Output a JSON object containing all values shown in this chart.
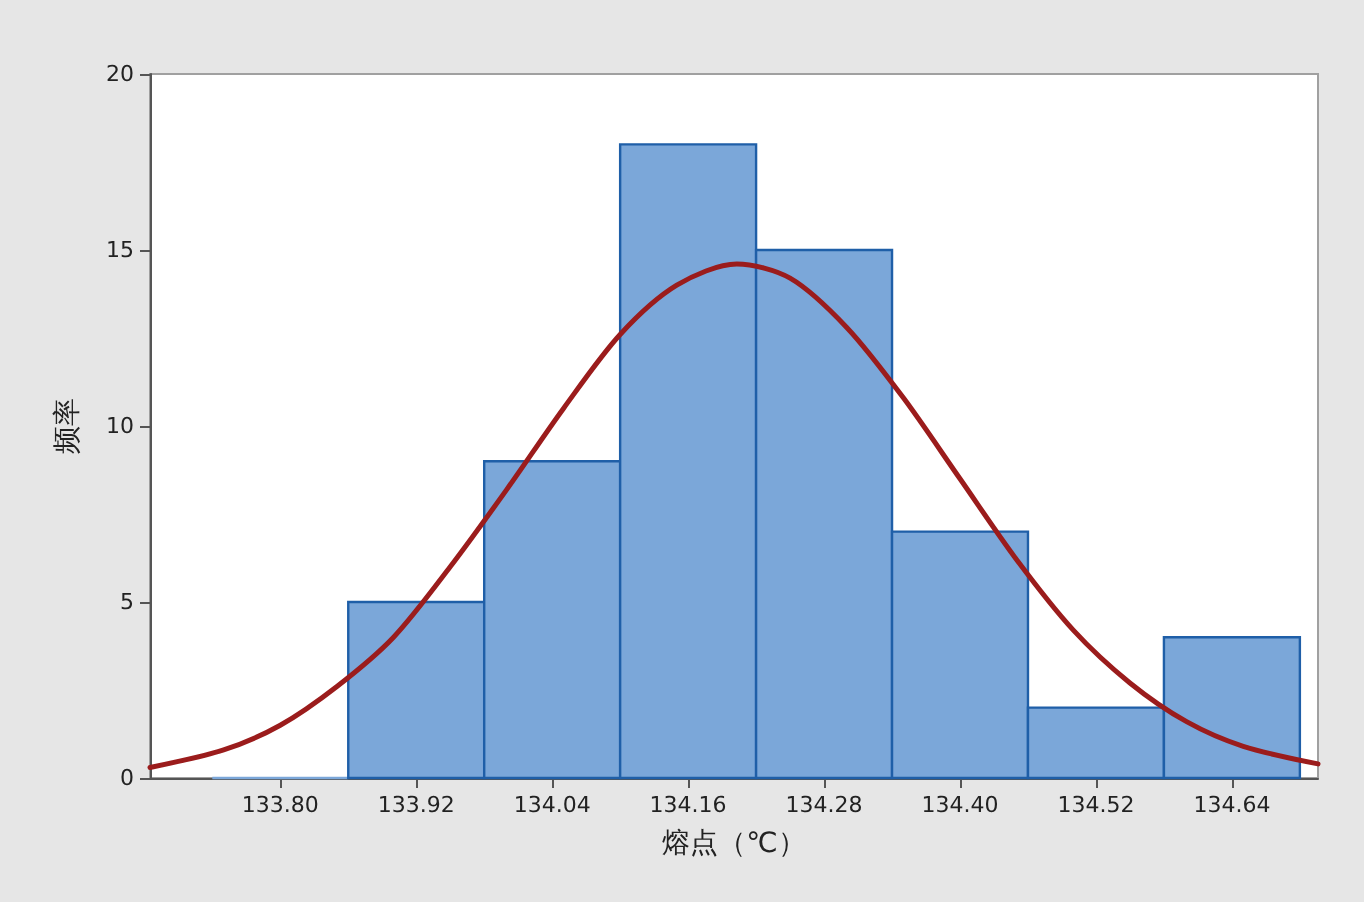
{
  "chart_data": {
    "type": "histogram",
    "xlabel": "熔点（℃）",
    "ylabel": "频率",
    "bins": [
      133.74,
      133.86,
      133.98,
      134.1,
      134.22,
      134.34,
      134.46,
      134.58,
      134.7
    ],
    "values": [
      0,
      5,
      9,
      18,
      15,
      7,
      2,
      4
    ],
    "color": "#7ba7d9",
    "series": [
      {
        "type": "line",
        "color": "#9b1c1c",
        "x": [
          133.685,
          133.75,
          133.8,
          133.85,
          133.9,
          133.95,
          134.0,
          134.05,
          134.1,
          134.15,
          134.203,
          134.25,
          134.3,
          134.35,
          134.4,
          134.45,
          134.5,
          134.55,
          134.6,
          134.65,
          134.716
        ],
        "values": [
          0.3,
          0.8,
          1.5,
          2.6,
          4.0,
          6.0,
          8.2,
          10.5,
          12.6,
          14.0,
          14.6,
          14.2,
          12.8,
          10.8,
          8.5,
          6.2,
          4.2,
          2.7,
          1.6,
          0.9,
          0.4
        ]
      }
    ],
    "xlim": [
      133.685,
      134.716
    ],
    "xticks": [
      {
        "value": 133.8,
        "label": "133.80"
      },
      {
        "value": 133.92,
        "label": "133.92"
      },
      {
        "value": 134.04,
        "label": "134.04"
      },
      {
        "value": 134.16,
        "label": "134.16"
      },
      {
        "value": 134.28,
        "label": "134.28"
      },
      {
        "value": 134.4,
        "label": "134.40"
      },
      {
        "value": 134.52,
        "label": "134.52"
      },
      {
        "value": 134.64,
        "label": "134.64"
      }
    ],
    "ylim": [
      0,
      20
    ],
    "yticks": [
      0,
      5,
      10,
      15,
      20
    ],
    "grid": false
  }
}
